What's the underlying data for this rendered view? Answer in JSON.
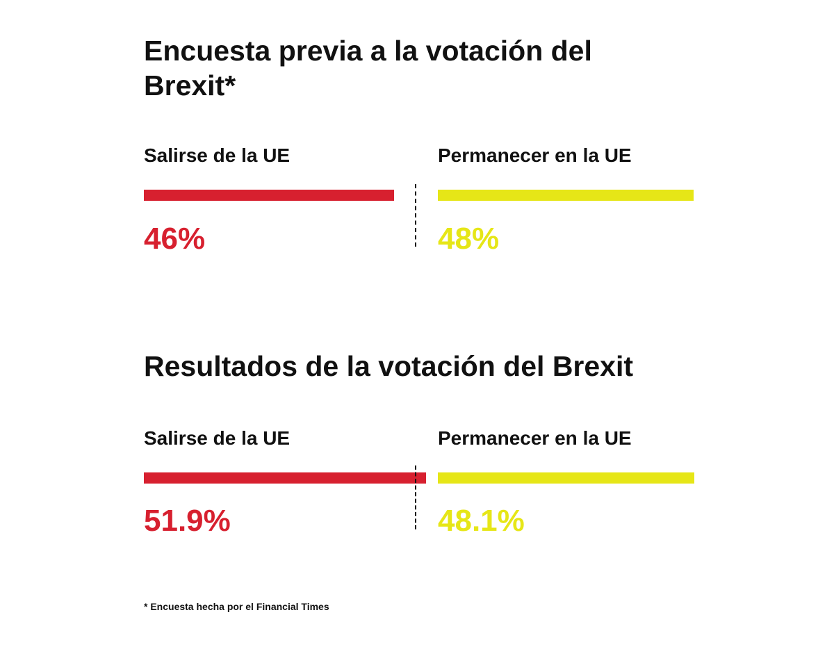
{
  "chart_data": [
    {
      "type": "bar",
      "title": "Encuesta previa a la votación del Brexit*",
      "categories": [
        "Salirse de la UE",
        "Permanecer en la UE"
      ],
      "values": [
        46,
        48
      ],
      "value_labels": [
        "46%",
        "48%"
      ],
      "colors": [
        "#d7202f",
        "#e6e617"
      ],
      "reference_line": 50
    },
    {
      "type": "bar",
      "title": "Resultados de la votación del Brexit",
      "categories": [
        "Salirse de la UE",
        "Permanecer en la UE"
      ],
      "values": [
        51.9,
        48.1
      ],
      "value_labels": [
        "51.9%",
        "48.1%"
      ],
      "colors": [
        "#d7202f",
        "#e6e617"
      ],
      "reference_line": 50
    }
  ],
  "footnote": "*  Encuesta hecha por el Financial Times"
}
